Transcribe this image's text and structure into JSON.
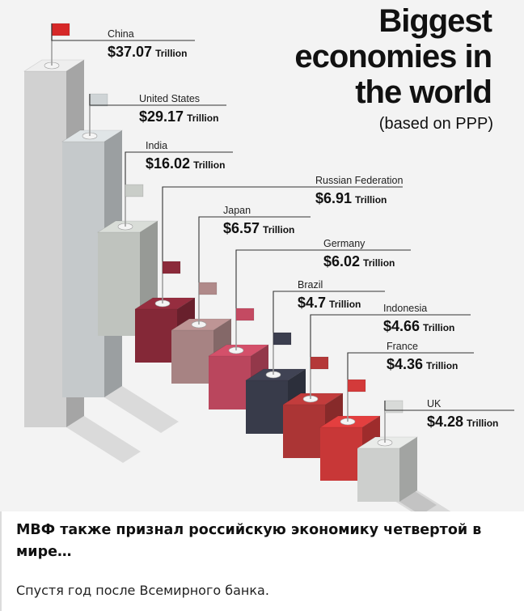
{
  "infographic": {
    "title_line1": "Biggest",
    "title_line2": "economies in",
    "title_line3": "the world",
    "subtitle": "(based on PPP)"
  },
  "chart_data": {
    "type": "bar",
    "categories": [
      "China",
      "United States",
      "India",
      "Russian Federation",
      "Japan",
      "Germany",
      "Brazil",
      "Indonesia",
      "France",
      "UK"
    ],
    "values": [
      37.07,
      29.17,
      16.02,
      6.91,
      6.57,
      6.02,
      4.7,
      4.66,
      4.36,
      4.28
    ],
    "value_labels": [
      "$37.07",
      "$29.17",
      "$16.02",
      "$6.91",
      "$6.57",
      "$6.02",
      "$4.7",
      "$4.66",
      "$4.36",
      "$4.28"
    ],
    "unit": "Trillion",
    "colors": [
      "#dcdcdc",
      "#cfd4d6",
      "#c9cdc8",
      "#8b2a3a",
      "#b08a8a",
      "#c44a62",
      "#3b3e4e",
      "#b43838",
      "#d33a3a",
      "#d8dad8"
    ]
  },
  "post": {
    "caption": "МВФ также признал российскую экономику четвертой в мире…",
    "subtext": "Спустя год после Всемирного банка."
  }
}
